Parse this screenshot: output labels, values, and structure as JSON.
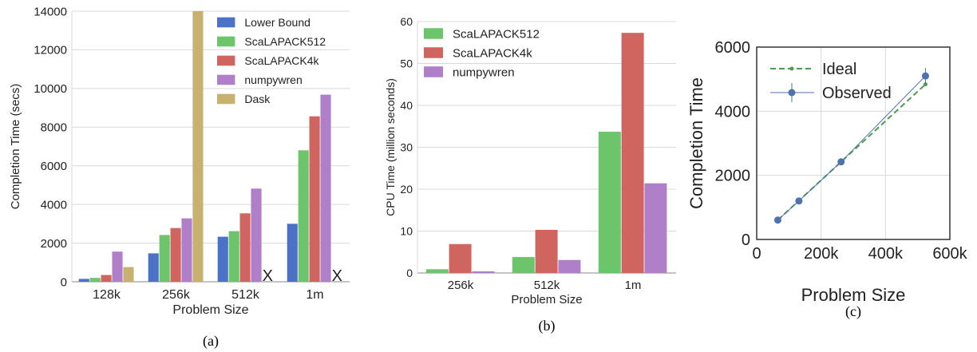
{
  "colors": {
    "Lower Bound": "#4c72c8",
    "ScaLAPACK512": "#6cc56a",
    "ScaLAPACK4k": "#d0645f",
    "numpywren": "#b07fc9",
    "Dask": "#c8b06e",
    "ideal": "#4a9e4a",
    "observed": "#4c72b0",
    "grid": "#d9d9d9"
  },
  "chart_data": [
    {
      "type": "bar",
      "caption": "(a)",
      "xlabel": "Problem Size",
      "ylabel": "Completion Time (secs)",
      "ylim": [
        0,
        14000
      ],
      "yticks": [
        "0",
        "2000",
        "4000",
        "6000",
        "8000",
        "10000",
        "12000",
        "14000"
      ],
      "categories": [
        "128k",
        "256k",
        "512k",
        "1m"
      ],
      "legend_position": "top-right",
      "series": [
        {
          "name": "Lower Bound",
          "values": [
            150,
            1470,
            2330,
            3000
          ]
        },
        {
          "name": "ScaLAPACK512",
          "values": [
            200,
            2420,
            2620,
            6800
          ]
        },
        {
          "name": "ScaLAPACK4k",
          "values": [
            350,
            2780,
            3540,
            8560
          ]
        },
        {
          "name": "numpywren",
          "values": [
            1560,
            3280,
            4820,
            9680
          ]
        },
        {
          "name": "Dask",
          "values": [
            760,
            14000,
            null,
            null
          ]
        }
      ],
      "missing_marker": "X"
    },
    {
      "type": "bar",
      "caption": "(b)",
      "xlabel": "Problem Size",
      "ylabel": "CPU Time (million seconds)",
      "ylim": [
        0,
        60
      ],
      "yticks": [
        "0",
        "10",
        "20",
        "30",
        "40",
        "50",
        "60"
      ],
      "categories": [
        "256k",
        "512k",
        "1m"
      ],
      "legend_position": "top-left",
      "series": [
        {
          "name": "ScaLAPACK512",
          "values": [
            0.9,
            3.8,
            33.7
          ]
        },
        {
          "name": "ScaLAPACK4k",
          "values": [
            6.9,
            10.3,
            57.3
          ]
        },
        {
          "name": "numpywren",
          "values": [
            0.4,
            3.1,
            21.4
          ]
        }
      ]
    },
    {
      "type": "line",
      "caption": "(c)",
      "xlabel": "Problem Size",
      "ylabel": "Completion Time",
      "xlim": [
        0,
        600000
      ],
      "ylim": [
        0,
        6000
      ],
      "xticks": [
        "0",
        "200k",
        "400k",
        "600k"
      ],
      "yticks": [
        "0",
        "2000",
        "4000",
        "6000"
      ],
      "legend_position": "top-left",
      "series": [
        {
          "name": "Ideal",
          "style": "dashed",
          "x": [
            65536,
            131072,
            262144,
            524288
          ],
          "y": [
            605,
            1210,
            2420,
            4840
          ]
        },
        {
          "name": "Observed",
          "style": "solid",
          "x": [
            65536,
            131072,
            262144,
            524288
          ],
          "y": [
            605,
            1200,
            2420,
            5100
          ],
          "err": [
            0,
            0,
            0,
            250
          ]
        }
      ]
    }
  ]
}
